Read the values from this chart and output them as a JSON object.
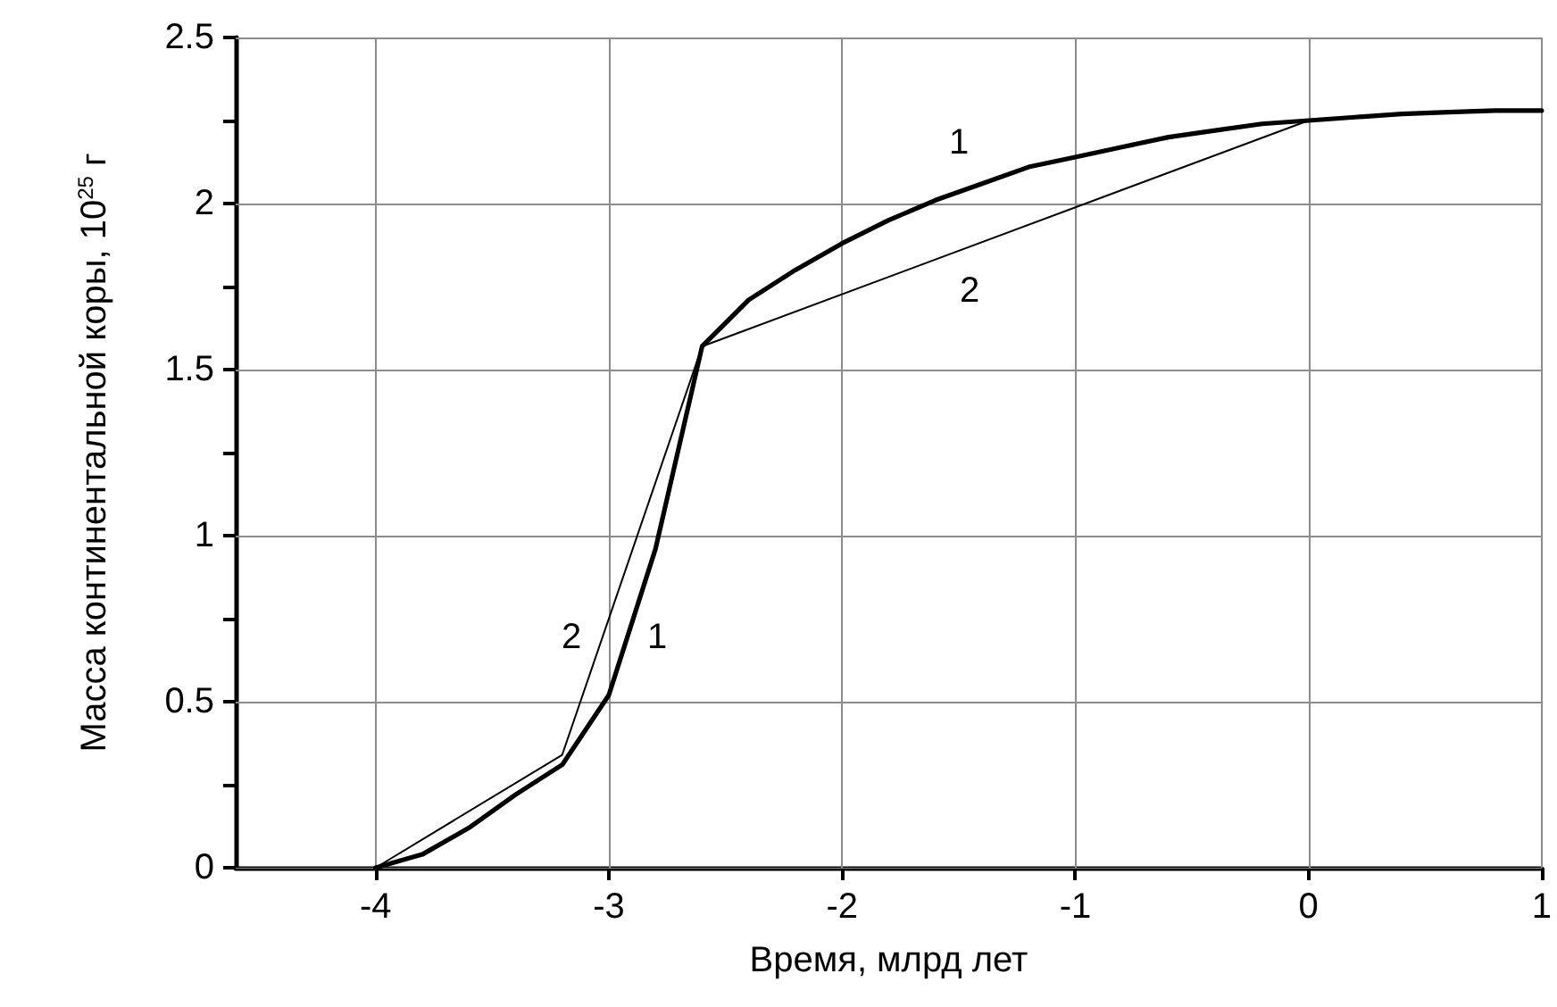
{
  "chart_data": {
    "type": "line",
    "xlabel": "Время, млрд лет",
    "ylabel": "Масса континентальной коры, 10$^{25}$ г",
    "xlim": [
      -4.6,
      1
    ],
    "xticks": [
      -4,
      -3,
      -2,
      -1,
      0,
      1
    ],
    "ylim": [
      0,
      2.5
    ],
    "yticks": [
      0,
      {
        "value": 0.25,
        "label": null
      },
      0.5,
      {
        "value": 0.75,
        "label": null
      },
      1,
      {
        "value": 1.25,
        "label": null
      },
      1.5,
      {
        "value": 1.75,
        "label": null
      },
      2,
      {
        "value": 2.25,
        "label": null
      },
      2.5
    ],
    "grid": true,
    "marker": "none",
    "line_style": "solid",
    "series": [
      {
        "color": "#000000",
        "x": [
          -4,
          -3.8,
          -3.6,
          -3.4,
          -3.2,
          -3,
          -2.8,
          -2.6,
          -2.4,
          -2.2,
          -2,
          -1.8,
          -1.6,
          -1.4,
          -1.2,
          -1,
          -0.8,
          -0.6,
          -0.4,
          -0.2,
          0,
          0.2,
          0.4,
          0.6,
          0.8,
          1
        ],
        "values": [
          0,
          0.04,
          0.12,
          0.22,
          0.31,
          0.52,
          0.96,
          1.57,
          1.71,
          1.8,
          1.88,
          1.95,
          2.01,
          2.06,
          2.11,
          2.14,
          2.17,
          2.2,
          2.22,
          2.24,
          2.25,
          2.26,
          2.27,
          2.275,
          2.28,
          2.28
        ]
      },
      {
        "color": "#000000",
        "x": [
          -4,
          -3.2,
          -2.6,
          0
        ],
        "values": [
          0,
          0.34,
          1.57,
          2.25
        ]
      }
    ],
    "annotations": [
      "1",
      "2",
      "2",
      "1"
    ]
  }
}
